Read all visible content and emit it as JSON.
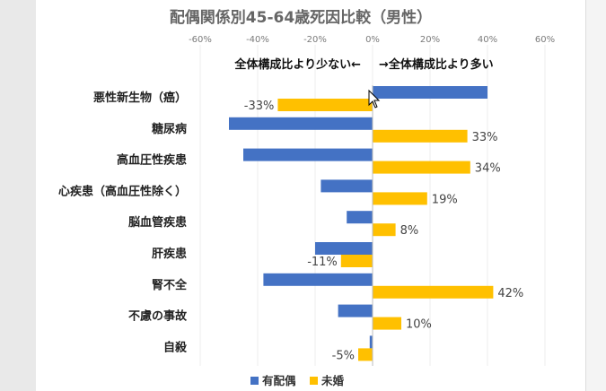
{
  "chart_data": {
    "type": "bar",
    "orientation": "horizontal",
    "title": "配偶関係別45-64歳死因比較（男性）",
    "xlim": [
      -60,
      60
    ],
    "x_ticks": [
      "-60%",
      "-40%",
      "-20%",
      "0%",
      "20%",
      "40%",
      "60%"
    ],
    "annotation_left": "全体構成比より少ない←",
    "annotation_right": "→全体構成比より多い",
    "categories": [
      "悪性新生物（癌）",
      "糖尿病",
      "高血圧性疾患",
      "心疾患（高血圧性除く）",
      "脳血管疾患",
      "肝疾患",
      "腎不全",
      "不慮の事故",
      "自殺"
    ],
    "series": [
      {
        "name": "有配偶",
        "color": "#4472C4",
        "values": [
          40,
          -50,
          -45,
          -18,
          -9,
          -20,
          -38,
          -12,
          -1
        ]
      },
      {
        "name": "未婚",
        "color": "#FFC000",
        "values": [
          -33,
          33,
          34,
          19,
          8,
          -11,
          42,
          10,
          -5
        ]
      }
    ],
    "data_labels": [
      "-33%",
      "33%",
      "34%",
      "19%",
      "8%",
      "-11%",
      "42%",
      "10%",
      "-5%"
    ],
    "legend_position": "bottom",
    "grid": true
  }
}
